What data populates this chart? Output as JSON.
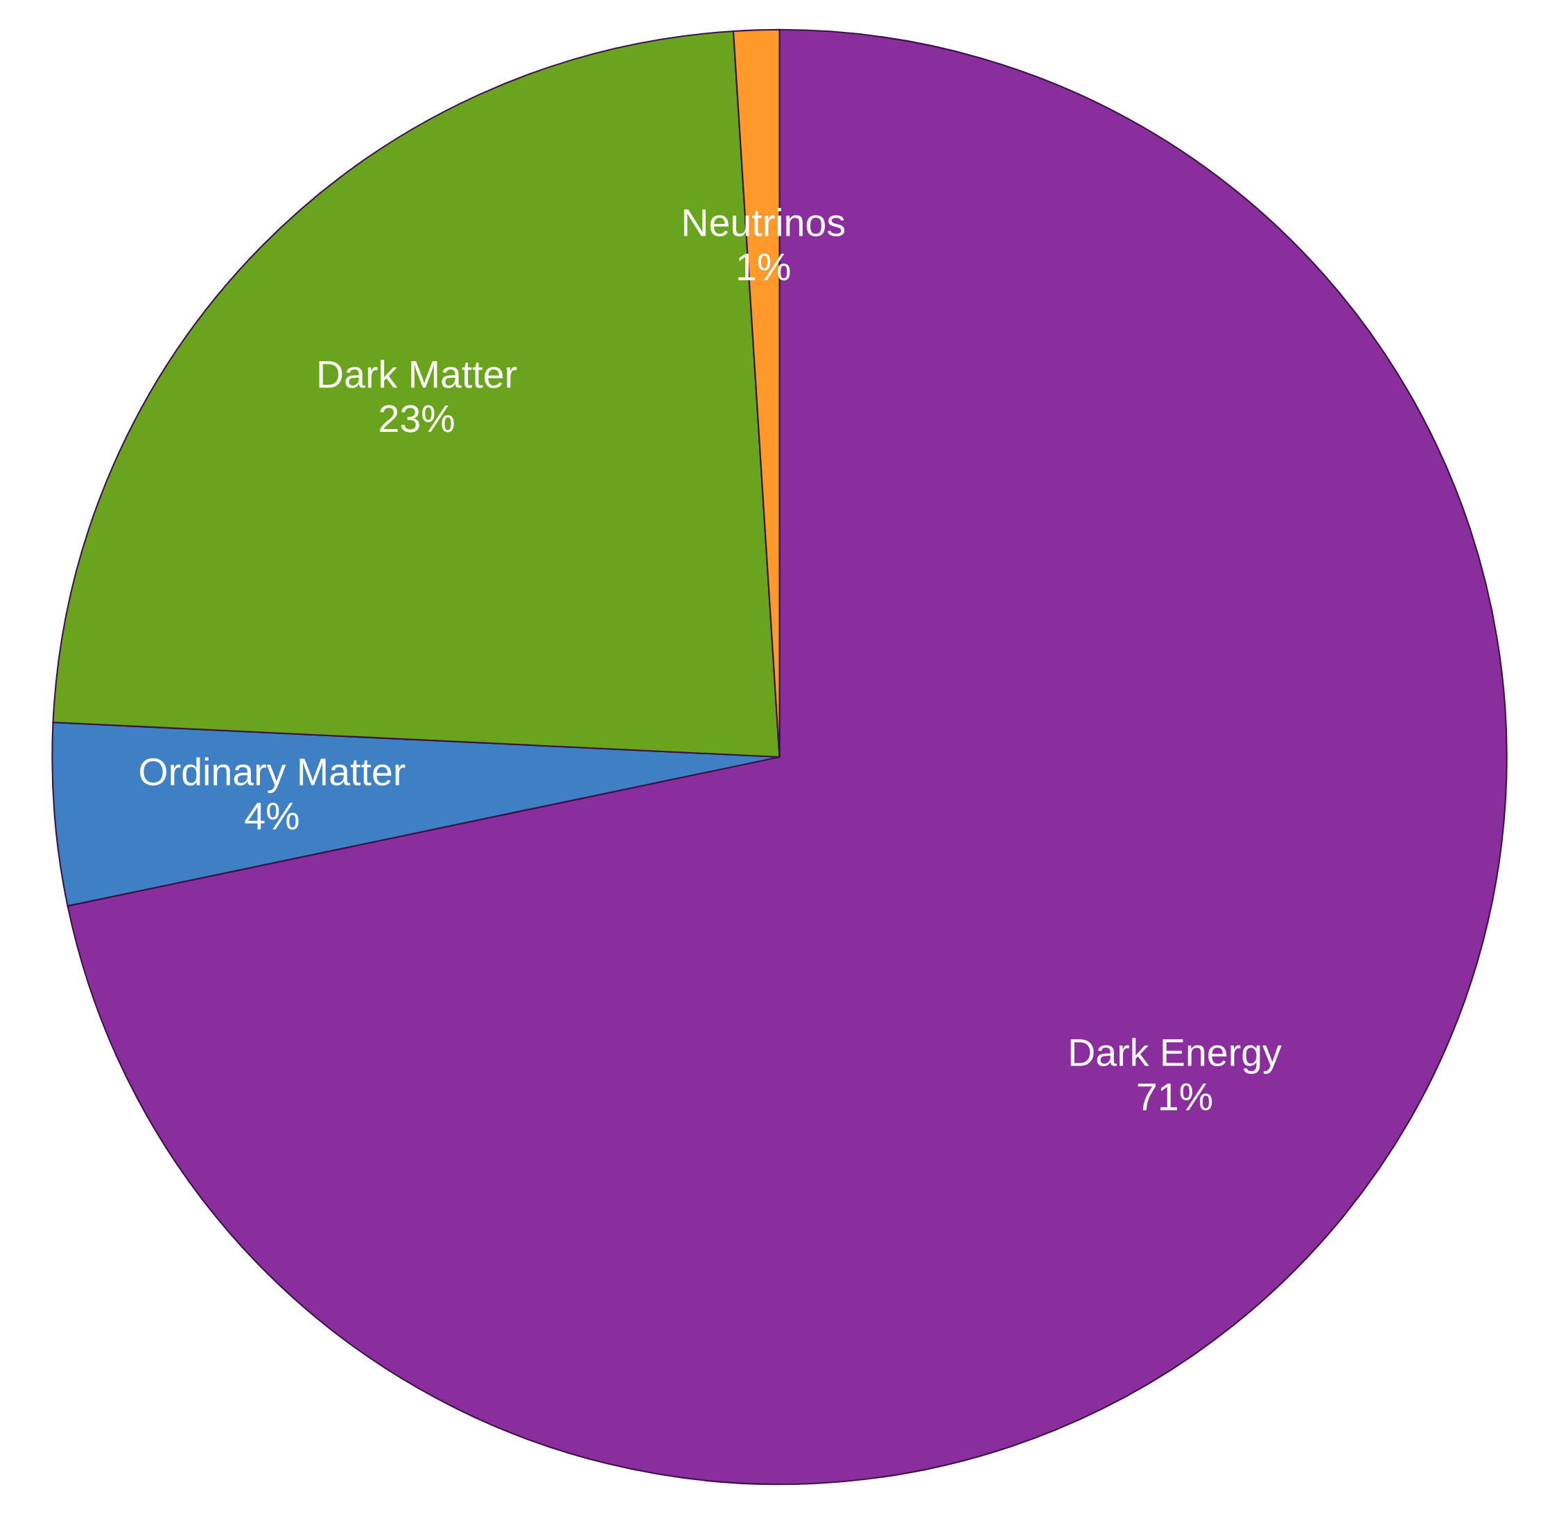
{
  "chart_data": {
    "type": "pie",
    "categories": [
      "Dark Energy",
      "Ordinary Matter",
      "Dark Matter",
      "Neutrinos"
    ],
    "values": [
      71,
      4,
      23,
      1
    ],
    "value_labels": [
      "71%",
      "4%",
      "23%",
      "1%"
    ],
    "colors": [
      "#8a2e9e",
      "#3f80c4",
      "#6aa31e",
      "#ff9a2a"
    ]
  }
}
